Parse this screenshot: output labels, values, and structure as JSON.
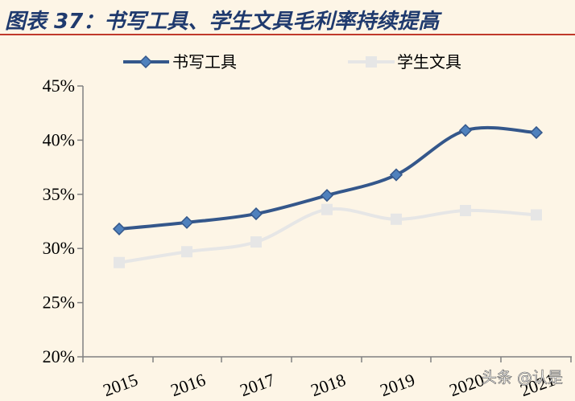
{
  "title": "图表 37：书写工具、学生文具毛利率持续提高",
  "watermark": "头条 @认是",
  "colors": {
    "series1": "#34578b",
    "series1_marker": "#4f81bd",
    "series2": "#e6e6e6",
    "axis": "#808080",
    "title": "#1f3a6e"
  },
  "chart_data": {
    "type": "line",
    "title": "图表 37：书写工具、学生文具毛利率持续提高",
    "categories": [
      "2015",
      "2016",
      "2017",
      "2018",
      "2019",
      "2020",
      "2021"
    ],
    "ylim": [
      20,
      45
    ],
    "ytick_labels": [
      "20%",
      "25%",
      "30%",
      "35%",
      "40%",
      "45%"
    ],
    "yticks": [
      20,
      25,
      30,
      35,
      40,
      45
    ],
    "grid": false,
    "legend_position": "top",
    "series": [
      {
        "name": "书写工具",
        "values": [
          31.8,
          32.4,
          33.2,
          34.9,
          36.8,
          40.9,
          40.7
        ],
        "marker": "diamond"
      },
      {
        "name": "学生文具",
        "values": [
          28.7,
          29.7,
          30.6,
          33.6,
          32.7,
          33.5,
          33.1
        ],
        "marker": "square"
      }
    ]
  }
}
